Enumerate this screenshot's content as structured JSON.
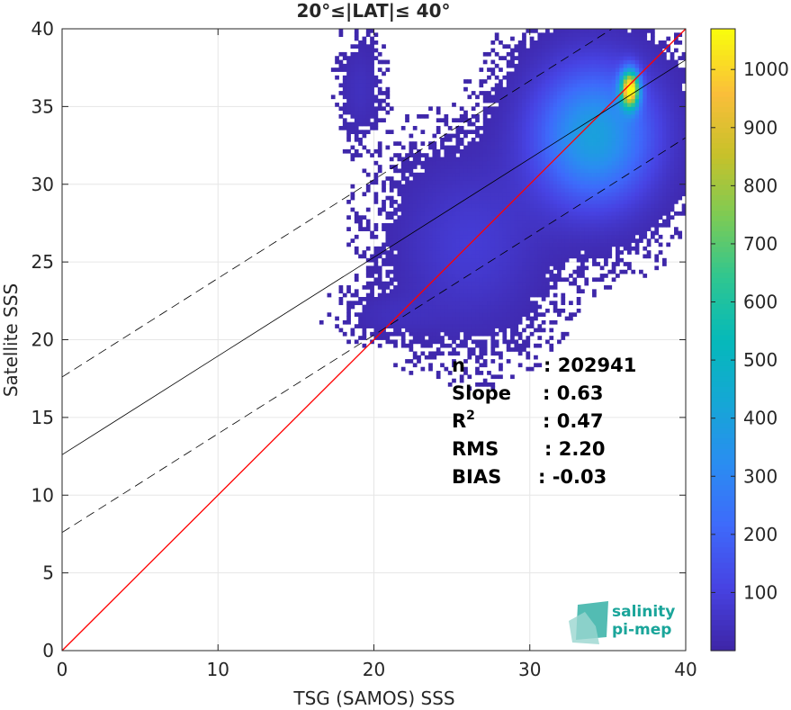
{
  "chart_data": {
    "type": "heatmap",
    "title": "20°≤|LAT|≤ 40°",
    "xlabel": "TSG (SAMOS) SSS",
    "ylabel": "Satellite SSS",
    "xlim": [
      0,
      40
    ],
    "ylim": [
      0,
      40
    ],
    "x_ticks": [
      "0",
      "10",
      "20",
      "30",
      "40"
    ],
    "y_ticks": [
      "0",
      "5",
      "10",
      "15",
      "20",
      "25",
      "30",
      "35",
      "40"
    ],
    "grid": true,
    "colorbar": {
      "range": [
        0,
        1070
      ],
      "ticks": [
        "100",
        "200",
        "300",
        "400",
        "500",
        "600",
        "700",
        "800",
        "900",
        "1000"
      ],
      "colormap": "parula"
    },
    "lines": [
      {
        "role": "one-to-one",
        "color": "#ff0000",
        "x": [
          0,
          40
        ],
        "y": [
          0,
          40
        ]
      },
      {
        "role": "regression fit",
        "color": "#000000",
        "style": "solid",
        "x": [
          0,
          40
        ],
        "y": [
          12.6,
          38.0
        ]
      },
      {
        "role": "fit + 5",
        "color": "#000000",
        "style": "dashed",
        "x": [
          0,
          40
        ],
        "y": [
          17.6,
          43.0
        ]
      },
      {
        "role": "fit - 5",
        "color": "#000000",
        "style": "dashed",
        "x": [
          0,
          40
        ],
        "y": [
          7.6,
          33.0
        ]
      }
    ],
    "density_clusters": [
      {
        "label": "main",
        "x_center": 34.0,
        "y_center": 33.0,
        "x_spread": 2.6,
        "y_spread": 3.0,
        "peak": 400
      },
      {
        "label": "core",
        "x_center": 36.3,
        "y_center": 36.0,
        "x_spread": 0.4,
        "y_spread": 0.8,
        "peak": 1050
      },
      {
        "label": "low-salinity band",
        "x_center": 26.0,
        "y_center": 26.0,
        "x_spread": 3.0,
        "y_spread": 3.5,
        "peak": 80
      },
      {
        "label": "fresh isolated",
        "x_center": 19.0,
        "y_center": 36.0,
        "x_spread": 0.8,
        "y_spread": 2.0,
        "peak": 40
      },
      {
        "label": "low tail",
        "x_center": 21.0,
        "y_center": 21.5,
        "x_spread": 2.0,
        "y_spread": 0.9,
        "peak": 30
      }
    ],
    "stats": [
      {
        "label": "n",
        "value": ": 202941"
      },
      {
        "label": "Slope",
        "value": ": 0.63"
      },
      {
        "label": "R2",
        "value": ": 0.47"
      },
      {
        "label": "RMS",
        "value": ": 2.20"
      },
      {
        "label": "BIAS",
        "value": ": -0.03"
      }
    ]
  },
  "logo": {
    "line1": "salinity",
    "line2": "pi-mep",
    "color": "#1aa59a"
  }
}
